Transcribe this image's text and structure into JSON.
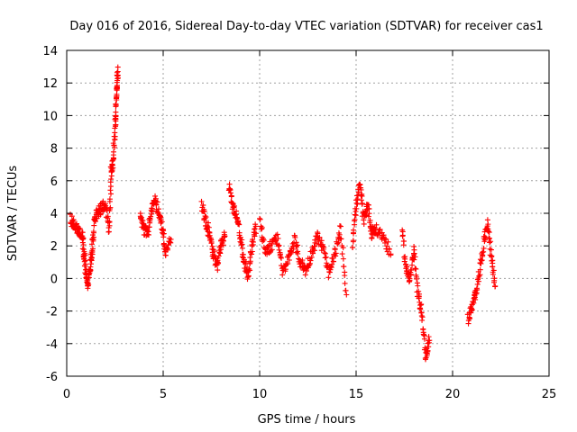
{
  "chart_data": {
    "type": "scatter",
    "title": "Day 016 of 2016, Sidereal Day-to-day VTEC variation (SDTVAR) for receiver cas1",
    "xlabel": "GPS time / hours",
    "ylabel": "SDTVAR / TECUs",
    "xlim": [
      0,
      25
    ],
    "ylim": [
      -6,
      14
    ],
    "xticks": [
      0,
      5,
      10,
      15,
      20,
      25
    ],
    "yticks": [
      -6,
      -4,
      -2,
      0,
      2,
      4,
      6,
      8,
      10,
      12,
      14
    ],
    "grid": true,
    "marker": "+",
    "marker_color": "#ff0000",
    "series": [
      {
        "name": "cas1",
        "segments": [
          {
            "x": [
              0.2,
              0.4,
              0.6,
              0.8,
              0.9,
              1.0,
              1.1,
              1.2,
              1.3,
              1.4
            ],
            "y": [
              3.6,
              3.3,
              3.0,
              2.8,
              1.5,
              0.2,
              -0.4,
              0.5,
              1.5,
              2.8
            ]
          },
          {
            "x": [
              1.4,
              1.6,
              1.8,
              2.0,
              2.2,
              2.3,
              2.4,
              2.5,
              2.55,
              2.6,
              2.65
            ],
            "y": [
              3.6,
              4.0,
              4.3,
              4.5,
              3.0,
              6.5,
              7.2,
              9.0,
              10.5,
              11.8,
              12.7
            ]
          },
          {
            "x": [
              3.8,
              4.0,
              4.2,
              4.4,
              4.6,
              4.8,
              5.0,
              5.1,
              5.4
            ],
            "y": [
              3.8,
              3.0,
              2.8,
              4.3,
              4.8,
              4.0,
              3.0,
              1.5,
              2.4
            ]
          },
          {
            "x": [
              7.0,
              7.2,
              7.4,
              7.6,
              7.8,
              8.0,
              8.2
            ],
            "y": [
              4.5,
              3.5,
              2.8,
              1.5,
              0.8,
              2.2,
              2.6
            ]
          },
          {
            "x": [
              8.4,
              8.6,
              8.8,
              9.0,
              9.2,
              9.4,
              9.6,
              9.8
            ],
            "y": [
              5.8,
              4.5,
              3.8,
              2.5,
              1.0,
              0.2,
              2.0,
              3.2
            ]
          },
          {
            "x": [
              10.0,
              10.3,
              10.6,
              10.9,
              11.2,
              11.5,
              11.8,
              12.1,
              12.4,
              12.7,
              13.0,
              13.3,
              13.6,
              13.9,
              14.2,
              14.5
            ],
            "y": [
              3.6,
              1.5,
              2.0,
              2.5,
              0.3,
              1.2,
              2.4,
              1.0,
              0.5,
              1.6,
              2.6,
              1.8,
              0.2,
              1.5,
              3.0,
              -1.0
            ]
          },
          {
            "x": [
              14.8,
              15.0,
              15.2,
              15.4,
              15.6,
              15.8,
              16.0,
              16.4,
              16.8
            ],
            "y": [
              2.0,
              4.5,
              5.8,
              3.5,
              4.6,
              2.8,
              3.0,
              2.6,
              1.5
            ]
          },
          {
            "x": [
              17.4,
              17.6,
              17.8,
              18.0,
              18.2,
              18.4,
              18.6,
              18.8
            ],
            "y": [
              2.8,
              0.5,
              0.0,
              1.8,
              -1.0,
              -2.0,
              -4.8,
              -3.8
            ]
          },
          {
            "x": [
              20.8,
              21.0,
              21.2,
              21.4,
              21.6,
              21.8,
              22.0,
              22.2
            ],
            "y": [
              -2.5,
              -1.8,
              -1.0,
              0.5,
              2.0,
              3.5,
              1.5,
              -0.5
            ]
          }
        ]
      }
    ]
  }
}
